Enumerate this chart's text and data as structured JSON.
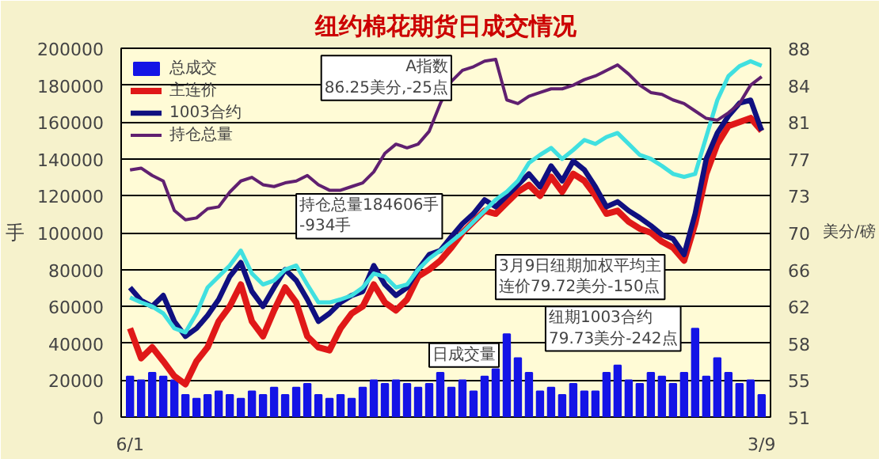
{
  "chart_data": {
    "type": "line",
    "title": "纽约棉花期货日成交情况",
    "ylabel": "手",
    "y2label": "美分/磅",
    "categories": [
      "6/1",
      null,
      null,
      null,
      null,
      null,
      null,
      null,
      null,
      null,
      null,
      null,
      null,
      null,
      null,
      null,
      null,
      null,
      null,
      null,
      null,
      null,
      null,
      null,
      null,
      null,
      null,
      null,
      null,
      null,
      null,
      null,
      null,
      null,
      null,
      null,
      null,
      null,
      null,
      null,
      null,
      null,
      null,
      null,
      null,
      null,
      null,
      null,
      null,
      null,
      null,
      null,
      null,
      null,
      null,
      null,
      null,
      "3/9"
    ],
    "ylim": [
      0,
      200000
    ],
    "yticks": [
      0,
      20000,
      40000,
      60000,
      80000,
      100000,
      120000,
      140000,
      160000,
      180000,
      200000
    ],
    "y2lim": [
      51,
      88
    ],
    "y2ticks": [
      {
        "value": 51,
        "label": "51"
      },
      {
        "value": 54.7,
        "label": "55"
      },
      {
        "value": 58.4,
        "label": "58"
      },
      {
        "value": 62.1,
        "label": "62"
      },
      {
        "value": 65.8,
        "label": "66"
      },
      {
        "value": 69.5,
        "label": "70"
      },
      {
        "value": 73.2,
        "label": "73"
      },
      {
        "value": 76.9,
        "label": "77"
      },
      {
        "value": 80.6,
        "label": "81"
      },
      {
        "value": 84.3,
        "label": "84"
      },
      {
        "value": 88,
        "label": "88"
      }
    ],
    "grid": "y",
    "legend": "top left",
    "series": [
      {
        "name": "总成交",
        "type": "bar",
        "color": "#1414e6",
        "values": [
          22000,
          20000,
          24000,
          22000,
          20000,
          12000,
          10000,
          12000,
          14000,
          12000,
          10000,
          14000,
          12000,
          16000,
          12000,
          16000,
          18000,
          12000,
          10000,
          12000,
          10000,
          16000,
          20000,
          18000,
          20000,
          18000,
          16000,
          18000,
          24000,
          16000,
          20000,
          14000,
          22000,
          26000,
          45000,
          32000,
          24000,
          14000,
          16000,
          12000,
          18000,
          14000,
          14000,
          24000,
          28000,
          20000,
          18000,
          24000,
          22000,
          18000,
          24000,
          48000,
          22000,
          32000,
          24000,
          18000,
          20000,
          12000
        ]
      },
      {
        "name": "主连价",
        "axis": "y2",
        "color": "#e01818",
        "values": [
          59.9,
          56.9,
          58.0,
          56.6,
          55.1,
          54.3,
          56.6,
          58.0,
          60.6,
          62.1,
          64.3,
          60.6,
          59.1,
          61.7,
          64.0,
          62.5,
          59.1,
          58.0,
          57.7,
          59.9,
          61.4,
          62.1,
          64.3,
          62.5,
          61.7,
          62.8,
          65.1,
          65.8,
          66.7,
          68.0,
          69.5,
          70.6,
          71.7,
          71.4,
          72.5,
          73.6,
          74.3,
          73.2,
          75.1,
          73.6,
          75.4,
          74.7,
          73.2,
          71.4,
          71.7,
          70.6,
          69.9,
          69.5,
          68.6,
          68.0,
          66.7,
          70.4,
          75.4,
          78.4,
          80.2,
          80.6,
          81.0,
          79.72
        ]
      },
      {
        "name": "1003合约",
        "axis": "y2",
        "color": "#101080",
        "values": [
          64.0,
          62.7,
          62.1,
          63.2,
          60.6,
          59.1,
          59.9,
          61.2,
          62.8,
          65.1,
          66.5,
          63.6,
          62.1,
          64.0,
          65.8,
          64.7,
          62.8,
          60.6,
          61.4,
          62.5,
          63.2,
          63.6,
          66.2,
          64.3,
          63.2,
          64.0,
          65.8,
          67.3,
          67.7,
          69.1,
          70.4,
          71.4,
          72.8,
          72.1,
          73.2,
          74.3,
          75.4,
          74.1,
          76.2,
          74.7,
          76.7,
          75.8,
          74.1,
          72.1,
          72.6,
          71.7,
          71.0,
          70.2,
          69.3,
          68.9,
          67.3,
          71.4,
          76.9,
          79.5,
          81.2,
          82.5,
          82.8,
          79.73
        ]
      },
      {
        "axis": "y2",
        "color": "#40e0e0",
        "values": [
          63.0,
          62.5,
          62.1,
          61.4,
          59.9,
          59.5,
          61.4,
          64.0,
          65.1,
          66.2,
          67.7,
          65.4,
          64.3,
          64.7,
          65.8,
          66.2,
          64.3,
          62.5,
          62.5,
          62.8,
          63.2,
          64.0,
          65.4,
          65.1,
          64.0,
          64.3,
          65.8,
          66.9,
          67.7,
          68.6,
          69.5,
          70.6,
          71.7,
          72.8,
          73.6,
          74.7,
          76.5,
          77.3,
          78.0,
          76.9,
          77.8,
          78.8,
          78.4,
          79.1,
          79.5,
          78.4,
          77.3,
          76.9,
          76.2,
          75.4,
          75.1,
          75.4,
          79.1,
          82.8,
          85.2,
          86.2,
          86.7,
          86.25
        ]
      },
      {
        "name": "持仓总量",
        "color": "#602070",
        "values": [
          134000,
          135000,
          131000,
          128000,
          112000,
          107000,
          108000,
          113000,
          114000,
          122000,
          128000,
          130000,
          126000,
          125000,
          127000,
          128000,
          131000,
          126000,
          123000,
          123000,
          125000,
          127000,
          133000,
          143000,
          148000,
          146000,
          148000,
          155000,
          170000,
          182000,
          188000,
          190000,
          193000,
          194000,
          172000,
          170000,
          174000,
          176000,
          178000,
          178000,
          180000,
          183000,
          185000,
          188000,
          191000,
          186000,
          180000,
          176000,
          175000,
          172000,
          170000,
          166000,
          162000,
          161000,
          165000,
          170000,
          180000,
          184606
        ]
      }
    ],
    "annotations": [
      "A指数86.25美分,-25点",
      "3月9日纽期加权平均主连价79.72美分-150点",
      "持仓总量184606手-934手",
      "纽期1003合约79.73美分-242点",
      "日成交量"
    ]
  }
}
